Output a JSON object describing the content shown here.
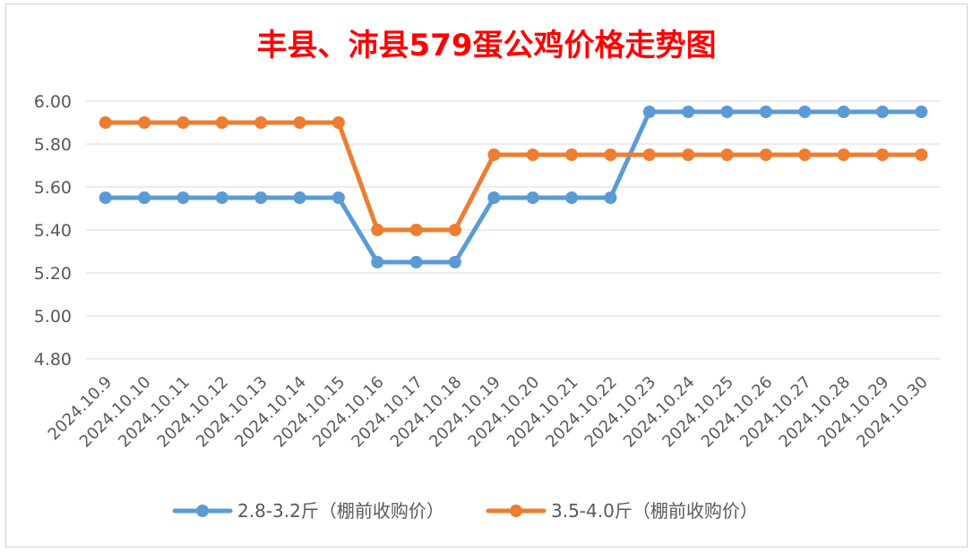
{
  "chart_data": {
    "type": "line",
    "title": "丰县、沛县579蛋公鸡价格走势图",
    "categories": [
      "2024.10.9",
      "2024.10.10",
      "2024.10.11",
      "2024.10.12",
      "2024.10.13",
      "2024.10.14",
      "2024.10.15",
      "2024.10.16",
      "2024.10.17",
      "2024.10.18",
      "2024.10.19",
      "2024.10.20",
      "2024.10.21",
      "2024.10.22",
      "2024.10.23",
      "2024.10.24",
      "2024.10.25",
      "2024.10.26",
      "2024.10.27",
      "2024.10.28",
      "2024.10.29",
      "2024.10.30"
    ],
    "series": [
      {
        "name": "2.8-3.2斤（棚前收购价）",
        "color": "#5b9bd5",
        "values": [
          5.55,
          5.55,
          5.55,
          5.55,
          5.55,
          5.55,
          5.55,
          5.25,
          5.25,
          5.25,
          5.55,
          5.55,
          5.55,
          5.55,
          5.95,
          5.95,
          5.95,
          5.95,
          5.95,
          5.95,
          5.95,
          5.95
        ]
      },
      {
        "name": "3.5-4.0斤（棚前收购价）",
        "color": "#ed7d31",
        "values": [
          5.9,
          5.9,
          5.9,
          5.9,
          5.9,
          5.9,
          5.9,
          5.4,
          5.4,
          5.4,
          5.75,
          5.75,
          5.75,
          5.75,
          5.75,
          5.75,
          5.75,
          5.75,
          5.75,
          5.75,
          5.75,
          5.75
        ]
      }
    ],
    "ylim": [
      4.8,
      6.0
    ],
    "yticks": [
      "4.80",
      "5.00",
      "5.20",
      "5.40",
      "5.60",
      "5.80",
      "6.00"
    ],
    "grid": true,
    "legend_position": "bottom"
  }
}
